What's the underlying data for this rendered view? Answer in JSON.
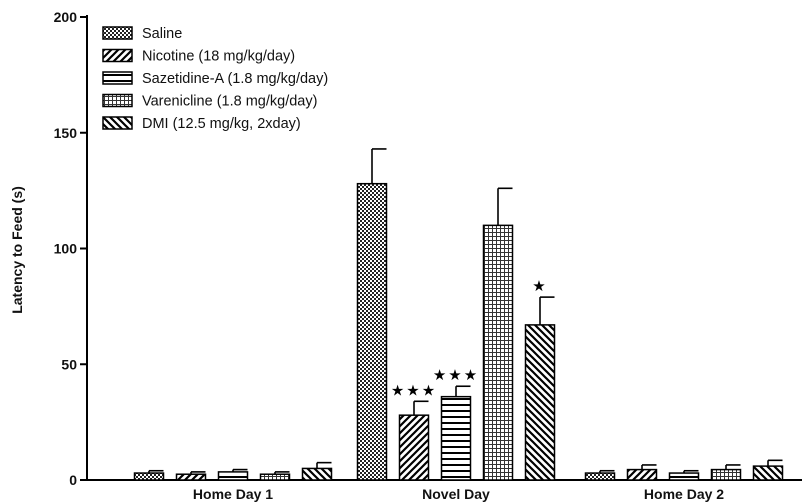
{
  "chart_data": {
    "type": "bar",
    "ylabel": "Latency to Feed (s)",
    "ylim": [
      0,
      200
    ],
    "yticks": [
      0,
      50,
      100,
      150,
      200
    ],
    "categories": [
      "Home Day 1",
      "Novel Day",
      "Home Day 2"
    ],
    "legend_position": "top-left",
    "series": [
      {
        "name": "Saline",
        "pattern": "checker",
        "values": [
          3,
          128,
          3
        ],
        "errors": [
          1,
          15,
          1
        ],
        "markers": [
          "",
          "",
          ""
        ]
      },
      {
        "name": "Nicotine (18 mg/kg/day)",
        "pattern": "diag-up",
        "values": [
          2.5,
          28,
          4.5
        ],
        "errors": [
          1,
          6,
          2
        ],
        "markers": [
          "",
          "★★★",
          ""
        ]
      },
      {
        "name": "Sazetidine-A (1.8 mg/kg/day)",
        "pattern": "horizontal",
        "values": [
          3.5,
          36,
          3
        ],
        "errors": [
          1,
          4.5,
          1
        ],
        "markers": [
          "",
          "★★★",
          ""
        ]
      },
      {
        "name": "Varenicline (1.8 mg/kg/day)",
        "pattern": "grid",
        "values": [
          2.5,
          110,
          4.5
        ],
        "errors": [
          1,
          16,
          2
        ],
        "markers": [
          "",
          "",
          ""
        ]
      },
      {
        "name": "DMI (12.5 mg/kg, 2xday)",
        "pattern": "diag-down",
        "values": [
          5,
          67,
          6
        ],
        "errors": [
          2.5,
          12,
          2.5
        ],
        "markers": [
          "",
          "★",
          ""
        ]
      }
    ]
  }
}
